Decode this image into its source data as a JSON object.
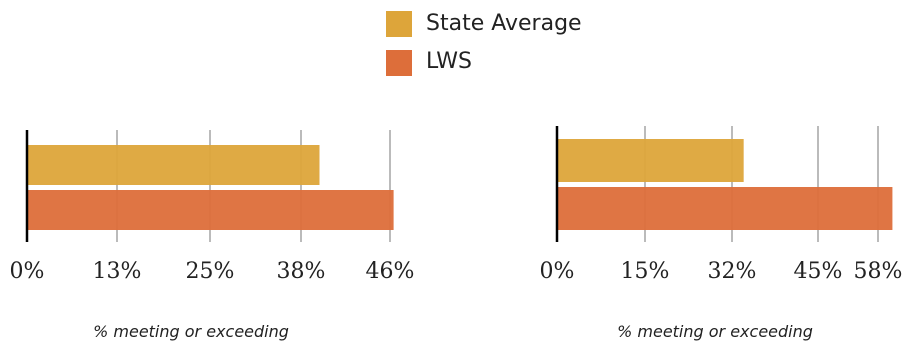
{
  "legend": [
    {
      "label": "State Average",
      "color": "#DDA53A"
    },
    {
      "label": "LWS",
      "color": "#DD6E3A"
    }
  ],
  "chart_data": [
    {
      "type": "bar",
      "orientation": "horizontal",
      "series": [
        {
          "name": "State Average",
          "values": [
            0.375
          ]
        },
        {
          "name": "LWS",
          "values": [
            0.47
          ]
        }
      ],
      "x_ticks": [
        "0%",
        "13%",
        "25%",
        "38%",
        "46%"
      ],
      "xlim": [
        0,
        0.5
      ],
      "xlabel": "% meeting or exceeding",
      "grid": true
    },
    {
      "type": "bar",
      "orientation": "horizontal",
      "series": [
        {
          "name": "State Average",
          "values": [
            0.32
          ]
        },
        {
          "name": "LWS",
          "values": [
            0.575
          ]
        }
      ],
      "x_ticks": [
        "0%",
        "15%",
        "32%",
        "45%",
        "58%"
      ],
      "xlim": [
        0,
        0.6
      ],
      "xlabel": "% meeting or exceeding",
      "grid": true
    }
  ]
}
